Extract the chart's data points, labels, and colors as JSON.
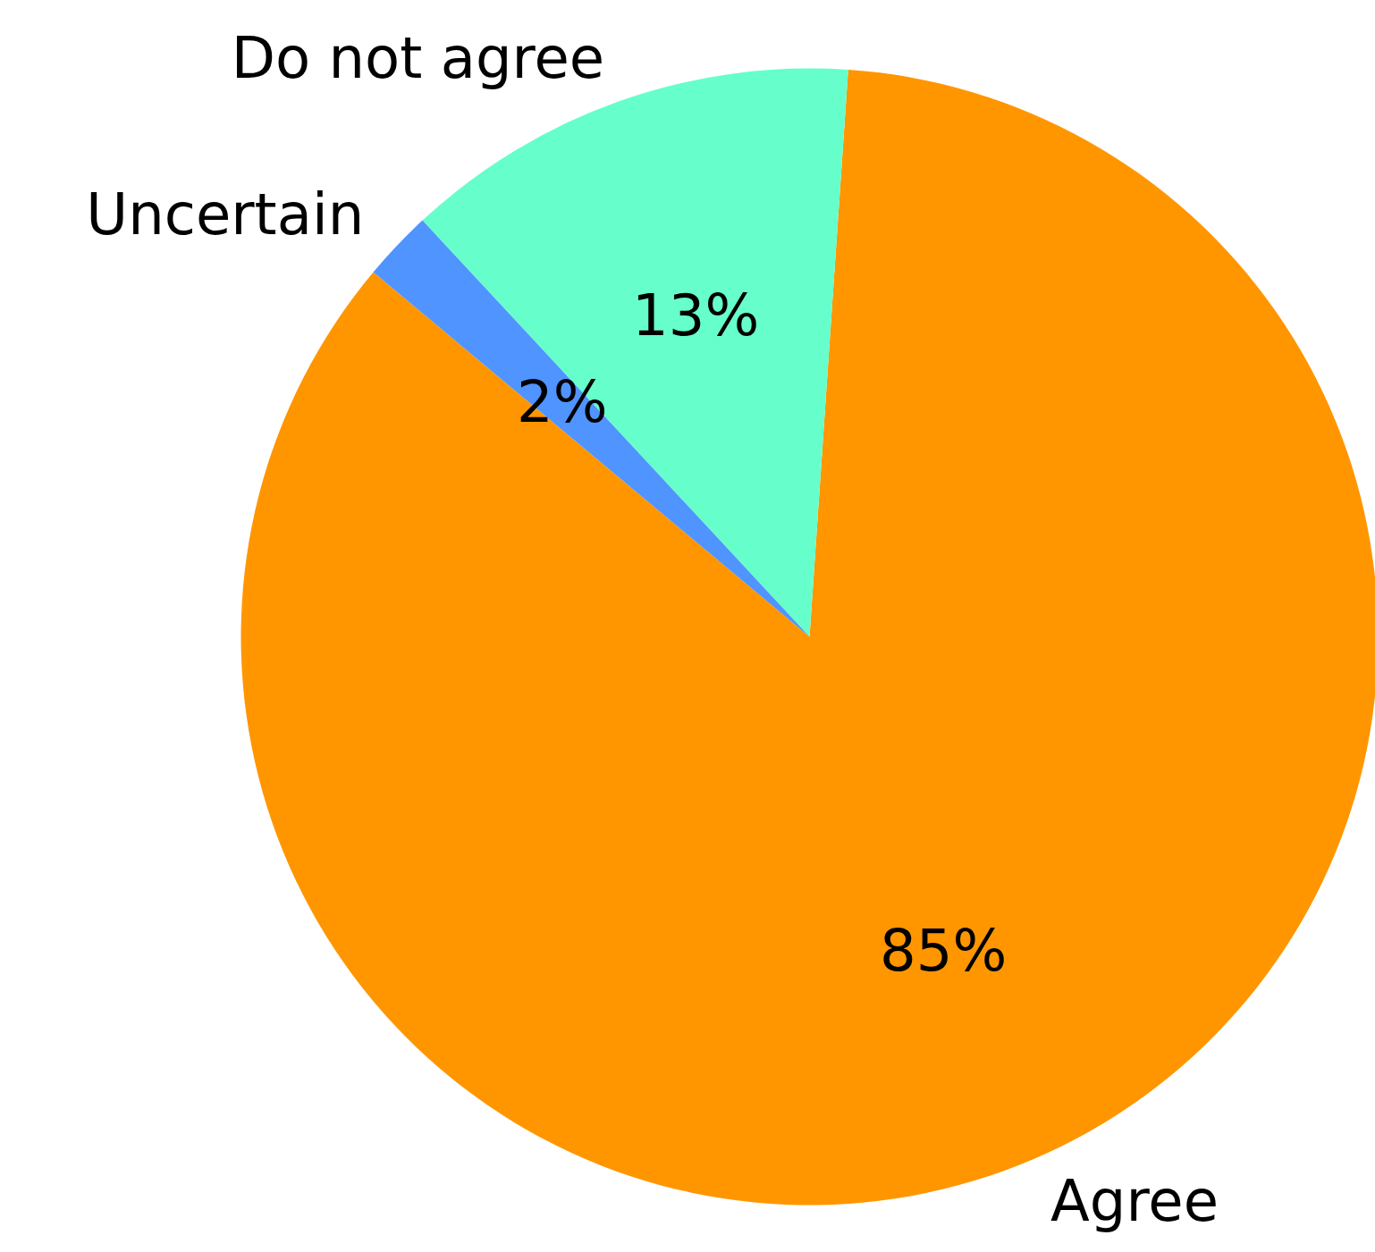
{
  "chart_data": {
    "type": "pie",
    "categories": [
      "Agree",
      "Do not agree",
      "Uncertain"
    ],
    "values": [
      85,
      13,
      2
    ],
    "colors": [
      "#ff9600",
      "#66ffcc",
      "#4f94ff"
    ],
    "value_labels": [
      "85%",
      "13%",
      "2%"
    ]
  }
}
